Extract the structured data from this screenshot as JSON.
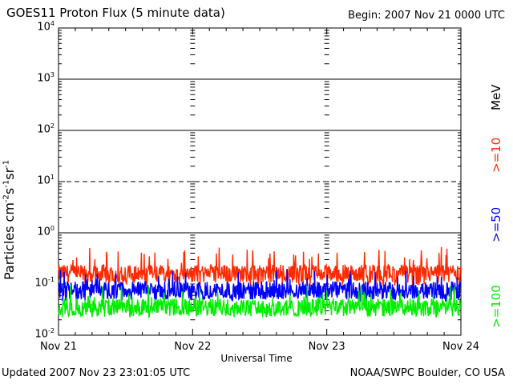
{
  "header": {
    "title": "GOES11 Proton Flux (5 minute data)",
    "begin": "Begin: 2007 Nov 21 0000 UTC"
  },
  "footer": {
    "updated": "Updated 2007 Nov 23 23:01:05 UTC",
    "credit": "NOAA/SWPC Boulder, CO USA"
  },
  "chart_data": {
    "type": "line",
    "title": "GOES11 Proton Flux (5 minute data)",
    "xlabel": "Universal Time",
    "ylabel": "Particles cm-2s-1sr-1",
    "yscale": "log",
    "ylim": [
      0.01,
      10000
    ],
    "y_ticks": [
      {
        "base": "10",
        "exp": "-2"
      },
      {
        "base": "10",
        "exp": "-1"
      },
      {
        "base": "10",
        "exp": "0"
      },
      {
        "base": "10",
        "exp": "1"
      },
      {
        "base": "10",
        "exp": "2"
      },
      {
        "base": "10",
        "exp": "3"
      },
      {
        "base": "10",
        "exp": "4"
      }
    ],
    "x_ticks": [
      "Nov 21",
      "Nov 22",
      "Nov 23",
      "Nov 24"
    ],
    "legend_unit": "MeV",
    "series": [
      {
        "name": ">=10",
        "color": "#ff2a00",
        "typical": 0.16,
        "min": 0.09,
        "max": 0.55
      },
      {
        "name": ">=50",
        "color": "#0000ff",
        "typical": 0.075,
        "min": 0.045,
        "max": 0.2
      },
      {
        "name": ">=100",
        "color": "#00ee00",
        "typical": 0.035,
        "min": 0.022,
        "max": 0.1
      }
    ],
    "reference_lines": [
      {
        "value": 1,
        "style": "solid"
      },
      {
        "value": 10,
        "style": "dashed"
      },
      {
        "value": 100,
        "style": "solid"
      },
      {
        "value": 1000,
        "style": "solid"
      }
    ]
  }
}
